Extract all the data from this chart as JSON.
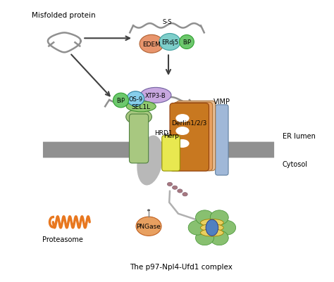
{
  "title": "Misfolded protein",
  "bottom_label": "The p97-Npl4-Ufd1 complex",
  "er_lumen": "ER lumen",
  "cytosol": "Cytosol",
  "vimp": "VIMP",
  "hrd1": "HRD1",
  "herp": "Herp",
  "derlin": "Derlin1/2/3",
  "sel1l": "SEL1L",
  "os9": "OS-9",
  "bip_top": "BiP",
  "bip_bottom": "BiP",
  "edem": "EDEM",
  "erdj5": "ERdj5",
  "xtp3b": "XTP3-B",
  "ss": "S-S",
  "proteasome": "Proteasome",
  "pngase": "PNGase",
  "colors": {
    "edem": "#E8956D",
    "erdj5": "#7ECECA",
    "bip_green": "#6DC86D",
    "os9": "#87CEEB",
    "xtp3b": "#C8A8E0",
    "sel1l": "#90C870",
    "hrd1_green": "#A8C880",
    "hrd1_gray": "#B8B8B8",
    "herp": "#E8E850",
    "derlin_brown": "#C87820",
    "derlin_light": "#E8A060",
    "derlin_peach": "#E8C098",
    "vimp_blue": "#A0B8D8",
    "p97_green": "#88C070",
    "p97_yellow": "#E8D060",
    "p97_blue": "#5080C0",
    "proteasome_orange": "#E87820",
    "pngase_orange": "#E8A060",
    "chain_mauve": "#A87880",
    "membrane": "#909090",
    "arrow": "#404040",
    "misfolded": "#909090",
    "protein_top": "#909090"
  }
}
